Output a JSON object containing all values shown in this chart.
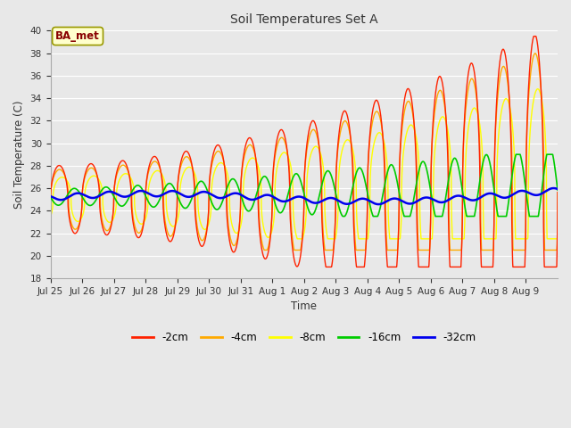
{
  "title": "Soil Temperatures Set A",
  "xlabel": "Time",
  "ylabel": "Soil Temperature (C)",
  "ylim": [
    18,
    40
  ],
  "yticks": [
    18,
    20,
    22,
    24,
    26,
    28,
    30,
    32,
    34,
    36,
    38,
    40
  ],
  "annotation": "BA_met",
  "annotation_color": "#880000",
  "annotation_bg": "#ffffcc",
  "annotation_border": "#999900",
  "plot_bg": "#e8e8e8",
  "fig_bg": "#e8e8e8",
  "grid_color": "#ffffff",
  "series_colors": {
    "-2cm": "#ff2200",
    "-4cm": "#ffaa00",
    "-8cm": "#ffff00",
    "-16cm": "#00cc00",
    "-32cm": "#0000ee"
  },
  "tick_labels": [
    "Jul 25",
    "Jul 26",
    "Jul 27",
    "Jul 28",
    "Jul 29",
    "Jul 30",
    "Jul 31",
    "Aug 1",
    "Aug 2",
    "Aug 3",
    "Aug 4",
    "Aug 5",
    "Aug 6",
    "Aug 7",
    "Aug 8",
    "Aug 9"
  ],
  "num_days": 16
}
